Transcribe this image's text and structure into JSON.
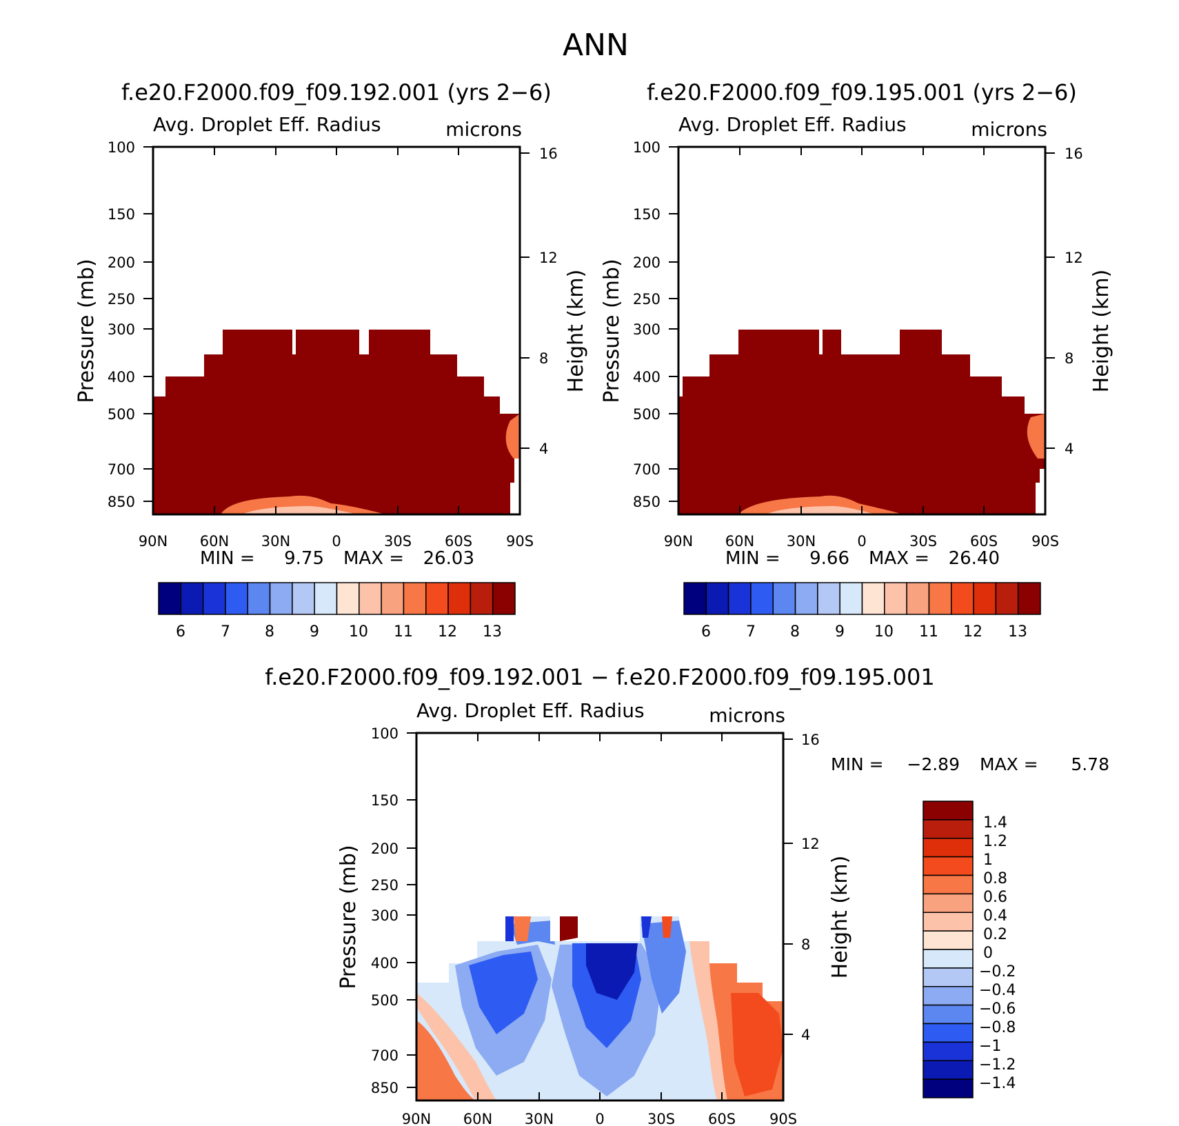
{
  "figure_title": "ANN",
  "chart_data": [
    {
      "type": "heatmap",
      "id": "panel-192",
      "title": "f.e20.F2000.f09_f09.192.001 (yrs 2−6)",
      "variable": "Avg. Droplet Eff. Radius",
      "units": "microns",
      "xlabel": "",
      "ylabel": "Pressure (mb)",
      "y2label": "Height (km)",
      "x_ticks": [
        "90N",
        "60N",
        "30N",
        "0",
        "30S",
        "60S",
        "90S"
      ],
      "y_ticks": [
        "100",
        "150",
        "200",
        "250",
        "300",
        "400",
        "500",
        "700",
        "850"
      ],
      "y2_ticks": [
        "16",
        "12",
        "8",
        "4"
      ],
      "min_label": "MIN =",
      "min_value": "9.75",
      "max_label": "MAX =",
      "max_value": "26.03",
      "colorbar_labels": [
        "6",
        "7",
        "8",
        "9",
        "10",
        "11",
        "12",
        "13"
      ],
      "cloud_top_mb": {
        "lat": [
          90,
          87,
          83,
          79,
          69,
          58,
          53,
          52,
          36,
          34,
          32,
          20,
          7,
          3,
          0,
          -36,
          -53,
          -60,
          -65,
          -70,
          -75,
          -77,
          -82,
          -84,
          -86,
          -88,
          -90
        ],
        "p": [
          460,
          400,
          400,
          350,
          300,
          300,
          300,
          300,
          300,
          300,
          300,
          300,
          300,
          300,
          300,
          300,
          350,
          400,
          450,
          450,
          500,
          500,
          650,
          700,
          900,
          900,
          900
        ]
      }
    },
    {
      "type": "heatmap",
      "id": "panel-195",
      "title": "f.e20.F2000.f09_f09.195.001 (yrs 2−6)",
      "variable": "Avg. Droplet Eff. Radius",
      "units": "microns",
      "xlabel": "",
      "ylabel": "Pressure (mb)",
      "y2label": "Height (km)",
      "x_ticks": [
        "90N",
        "60N",
        "30N",
        "0",
        "30S",
        "60S",
        "90S"
      ],
      "y_ticks": [
        "100",
        "150",
        "200",
        "250",
        "300",
        "400",
        "500",
        "700",
        "850"
      ],
      "y2_ticks": [
        "16",
        "12",
        "8",
        "4"
      ],
      "min_label": "MIN =",
      "min_value": "9.66",
      "max_label": "MAX =",
      "max_value": "26.40",
      "colorbar_labels": [
        "6",
        "7",
        "8",
        "9",
        "10",
        "11",
        "12",
        "13"
      ]
    },
    {
      "type": "heatmap",
      "id": "panel-diff",
      "title": "f.e20.F2000.f09_f09.192.001 − f.e20.F2000.f09_f09.195.001",
      "variable": "Avg. Droplet Eff. Radius",
      "units": "microns",
      "xlabel": "",
      "ylabel": "Pressure (mb)",
      "y2label": "Height (km)",
      "x_ticks": [
        "90N",
        "60N",
        "30N",
        "0",
        "30S",
        "60S",
        "90S"
      ],
      "y_ticks": [
        "100",
        "150",
        "200",
        "250",
        "300",
        "400",
        "500",
        "700",
        "850"
      ],
      "y2_ticks": [
        "16",
        "12",
        "8",
        "4"
      ],
      "min_label": "MIN =",
      "min_value": "−2.89",
      "max_label": "MAX =",
      "max_value": "5.78",
      "colorbar_labels": [
        "1.4",
        "1.2",
        "1",
        "0.8",
        "0.6",
        "0.4",
        "0.2",
        "0",
        "−0.2",
        "−0.4",
        "−0.6",
        "−0.8",
        "−1",
        "−1.2",
        "−1.4"
      ]
    }
  ],
  "colors": {
    "abs_levels": [
      "#00007f",
      "#0a1ab2",
      "#1a33d9",
      "#2e5cf2",
      "#5c86f0",
      "#8cabf2",
      "#b4c8f5",
      "#d7e8fa",
      "#fee4d3",
      "#fcc3aa",
      "#f9a27f",
      "#f77746",
      "#f34a1e",
      "#de2e0a",
      "#b91e0d",
      "#8b0000"
    ],
    "diff_levels": [
      "#00007f",
      "#0a1ab2",
      "#1a33d9",
      "#2e5cf2",
      "#5c86f0",
      "#8cabf2",
      "#b4c8f5",
      "#d7e8fa",
      "#fee4d3",
      "#fcc3aa",
      "#f9a27f",
      "#f77746",
      "#f34a1e",
      "#de2e0a",
      "#b91e0d",
      "#8b0000"
    ]
  }
}
